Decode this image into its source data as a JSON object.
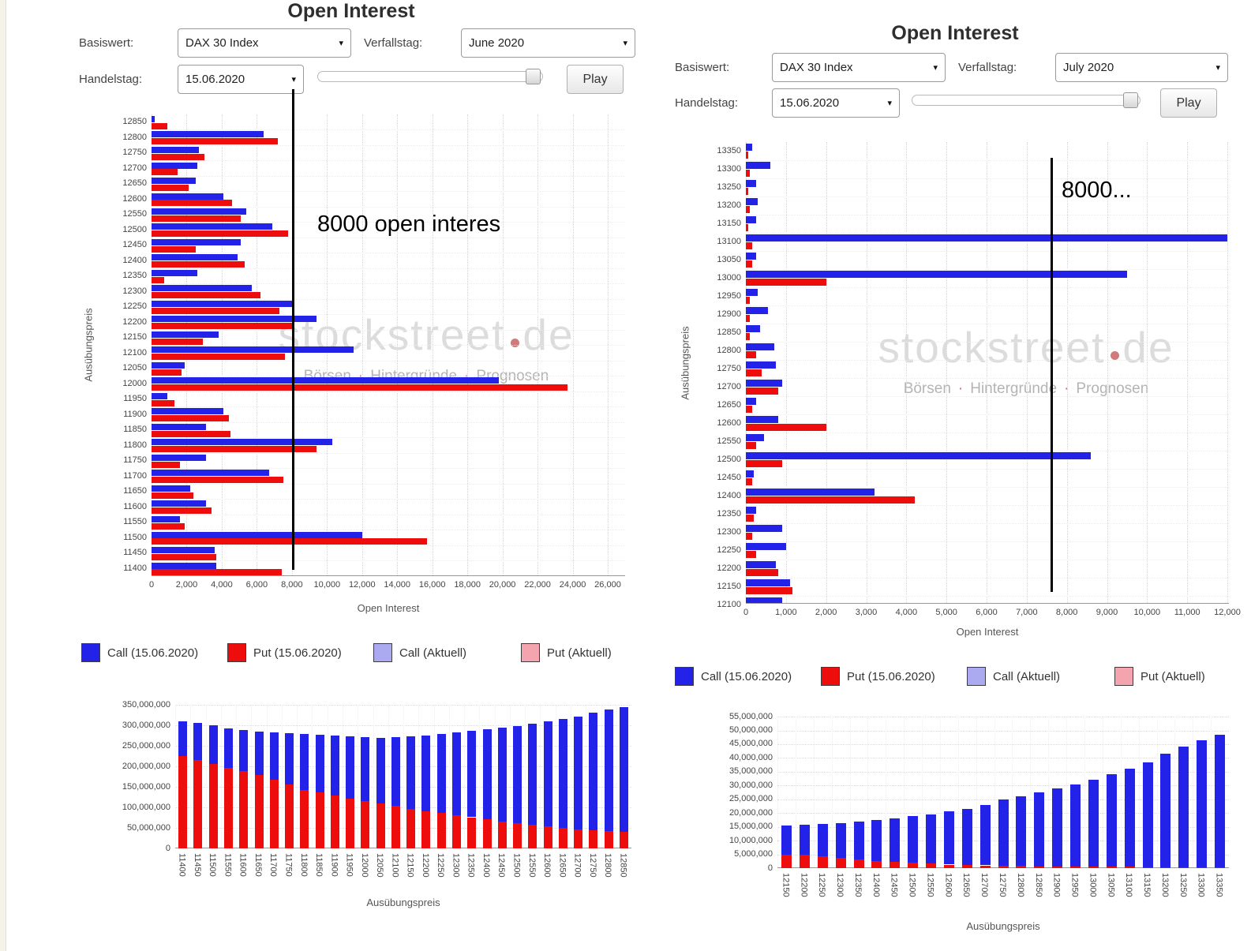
{
  "watermark": {
    "brand": "stockstreet",
    "tld": "de",
    "parts": [
      "Börsen",
      "Hintergründe",
      "Prognosen"
    ]
  },
  "legend": [
    {
      "label": "Call (15.06.2020)",
      "color": "#2222e8"
    },
    {
      "label": "Put (15.06.2020)",
      "color": "#ee0d0d"
    },
    {
      "label": "Call (Aktuell)",
      "color": "#abaaf0"
    },
    {
      "label": "Put (Aktuell)",
      "color": "#f3a4ae"
    }
  ],
  "left_panel": {
    "title": "Open Interest",
    "controls": {
      "basiswert_label": "Basiswert:",
      "basiswert_value": "DAX 30 Index",
      "verfallstag_label": "Verfallstag:",
      "verfallstag_value": "June 2020",
      "handelstag_label": "Handelstag:",
      "handelstag_value": "15.06.2020",
      "play_label": "Play"
    }
  },
  "right_panel": {
    "title": "Open Interest",
    "controls": {
      "basiswert_label": "Basiswert:",
      "basiswert_value": "DAX 30 Index",
      "verfallstag_label": "Verfallstag:",
      "verfallstag_value": "July 2020",
      "handelstag_label": "Handelstag:",
      "handelstag_value": "15.06.2020",
      "play_label": "Play"
    }
  },
  "chart_data": [
    {
      "id": "left_top",
      "type": "bar",
      "orientation": "horizontal",
      "title": "Open Interest",
      "xlabel": "Open Interest",
      "ylabel": "Ausübungspreis",
      "xlim": [
        0,
        26000
      ],
      "xtick_step": 2000,
      "grid": true,
      "annotation": {
        "text": "8000 open interes",
        "line_x": 8000
      },
      "categories": [
        12850,
        12800,
        12750,
        12700,
        12650,
        12600,
        12550,
        12500,
        12450,
        12400,
        12350,
        12300,
        12250,
        12200,
        12150,
        12100,
        12050,
        12000,
        11950,
        11900,
        11850,
        11800,
        11750,
        11700,
        11650,
        11600,
        11550,
        11500,
        11450,
        11400
      ],
      "series": [
        {
          "name": "Call (15.06.2020)",
          "color": "#2222e8",
          "values": [
            200,
            6400,
            2700,
            2600,
            2500,
            4100,
            5400,
            6900,
            5100,
            4900,
            2600,
            5700,
            8100,
            9400,
            3800,
            11500,
            1900,
            19800,
            900,
            4100,
            3100,
            10300,
            3100,
            6700,
            2200,
            3100,
            1600,
            12000,
            3600,
            3700
          ]
        },
        {
          "name": "Put (15.06.2020)",
          "color": "#ee0d0d",
          "values": [
            900,
            7200,
            3000,
            1500,
            2100,
            4600,
            5100,
            7800,
            2500,
            5300,
            700,
            6200,
            7300,
            8100,
            2900,
            7600,
            1700,
            23700,
            1300,
            4400,
            4500,
            9400,
            1600,
            7500,
            2400,
            3400,
            1900,
            15700,
            3700,
            7400
          ]
        }
      ]
    },
    {
      "id": "right_top",
      "type": "bar",
      "orientation": "horizontal",
      "title": "Open Interest",
      "xlabel": "Open Interest",
      "ylabel": "Ausübungspreis",
      "xlim": [
        0,
        12000
      ],
      "xtick_step": 1000,
      "grid": true,
      "annotation": {
        "text": "8000...",
        "line_x": 7600
      },
      "categories": [
        13350,
        13300,
        13250,
        13200,
        13150,
        13100,
        13050,
        13000,
        12950,
        12900,
        12850,
        12800,
        12750,
        12700,
        12650,
        12600,
        12550,
        12500,
        12450,
        12400,
        12350,
        12300,
        12250,
        12200,
        12150,
        12100
      ],
      "series": [
        {
          "name": "Call (15.06.2020)",
          "color": "#2222e8",
          "values": [
            150,
            600,
            250,
            300,
            250,
            12000,
            250,
            9500,
            300,
            550,
            350,
            700,
            750,
            900,
            250,
            800,
            450,
            8600,
            200,
            3200,
            250,
            900,
            1000,
            750,
            1100,
            900
          ]
        },
        {
          "name": "Put (15.06.2020)",
          "color": "#ee0d0d",
          "values": [
            60,
            100,
            60,
            100,
            60,
            150,
            150,
            2000,
            100,
            100,
            100,
            250,
            400,
            800,
            150,
            2000,
            250,
            900,
            150,
            4200,
            200,
            150,
            250,
            800,
            1150,
            700
          ]
        }
      ]
    },
    {
      "id": "left_bottom",
      "type": "bar",
      "orientation": "vertical",
      "stacked": true,
      "xlabel": "Ausübungspreis",
      "ylim": [
        0,
        350000000
      ],
      "ytick_step": 50000000,
      "grid": true,
      "categories": [
        11400,
        11450,
        11500,
        11550,
        11600,
        11650,
        11700,
        11750,
        11800,
        11850,
        11900,
        11950,
        12000,
        12050,
        12100,
        12150,
        12200,
        12250,
        12300,
        12350,
        12400,
        12450,
        12500,
        12550,
        12600,
        12650,
        12700,
        12750,
        12800,
        12850
      ],
      "series": [
        {
          "name": "Call (15.06.2020)",
          "color": "#2222e8",
          "values": [
            85000000,
            90000000,
            95000000,
            96000000,
            100000000,
            107000000,
            115000000,
            126000000,
            135000000,
            141000000,
            147000000,
            152000000,
            157000000,
            160000000,
            168000000,
            176000000,
            185000000,
            193000000,
            202000000,
            211000000,
            220000000,
            229000000,
            238000000,
            247000000,
            256000000,
            265000000,
            275000000,
            285000000,
            295000000,
            305000000
          ]
        },
        {
          "name": "Put (15.06.2020)",
          "color": "#ee0d0d",
          "values": [
            225000000,
            215000000,
            205000000,
            196000000,
            188000000,
            178000000,
            168000000,
            155000000,
            143000000,
            136000000,
            128000000,
            121000000,
            115000000,
            110000000,
            103000000,
            97000000,
            91000000,
            86000000,
            81000000,
            76000000,
            71000000,
            66000000,
            61000000,
            57000000,
            53000000,
            50000000,
            47000000,
            45000000,
            43000000,
            40000000
          ]
        }
      ]
    },
    {
      "id": "right_bottom",
      "type": "bar",
      "orientation": "vertical",
      "stacked": true,
      "xlabel": "Ausübungspreis",
      "ylim": [
        0,
        55000000
      ],
      "ytick_step": 5000000,
      "grid": true,
      "categories": [
        12150,
        12200,
        12250,
        12300,
        12350,
        12400,
        12450,
        12500,
        12550,
        12600,
        12650,
        12700,
        12750,
        12800,
        12850,
        12900,
        12950,
        13000,
        13050,
        13100,
        13150,
        13200,
        13250,
        13300,
        13350
      ],
      "series": [
        {
          "name": "Call (15.06.2020)",
          "color": "#2222e8",
          "values": [
            10500000,
            11000000,
            11600000,
            12600000,
            13700000,
            14700000,
            15700000,
            16800000,
            17900000,
            19200000,
            20400000,
            22000000,
            23900000,
            25200000,
            26800000,
            28300000,
            29900000,
            31600000,
            33500000,
            35500000,
            38100000,
            41100000,
            43600000,
            46200000,
            48200000
          ]
        },
        {
          "name": "Put (15.06.2020)",
          "color": "#ee0d0d",
          "values": [
            5000000,
            4800000,
            4400000,
            3800000,
            3200000,
            2700000,
            2300000,
            2000000,
            1600000,
            1300000,
            1100000,
            1000000,
            900000,
            800000,
            700000,
            700000,
            600000,
            600000,
            500000,
            500000,
            400000,
            400000,
            400000,
            300000,
            300000
          ]
        }
      ]
    }
  ]
}
